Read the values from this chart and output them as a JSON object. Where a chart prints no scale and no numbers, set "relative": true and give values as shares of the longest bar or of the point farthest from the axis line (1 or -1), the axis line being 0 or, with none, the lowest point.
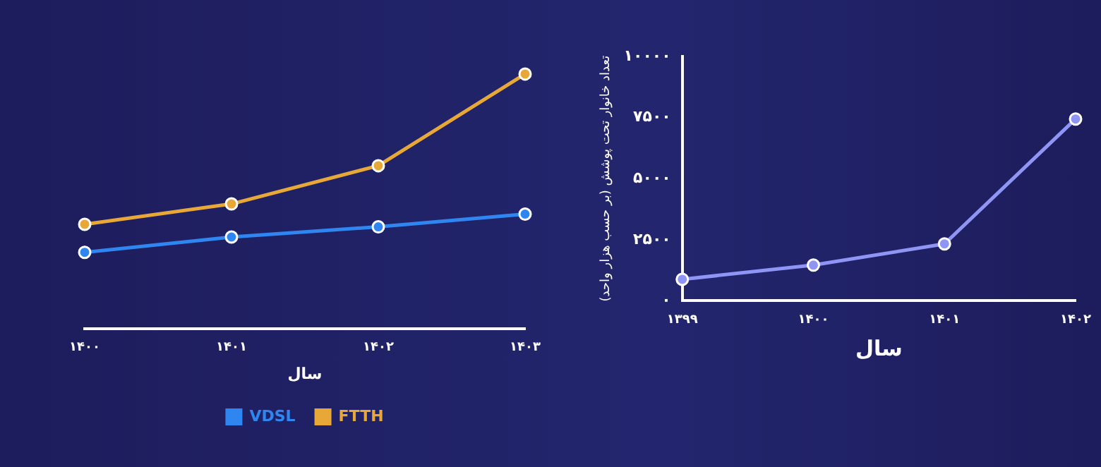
{
  "chart_data": [
    {
      "type": "line",
      "xlabel": "سال",
      "categories": [
        "۱۴۰۰",
        "۱۴۰۱",
        "۱۴۰۲",
        "۱۴۰۳"
      ],
      "relative": true,
      "marker": "circle",
      "grid": false,
      "legend": "bottom",
      "series": [
        {
          "name": "VDSL",
          "color": "#2f86f0",
          "values": [
            0.3,
            0.36,
            0.4,
            0.45
          ]
        },
        {
          "name": "FTTH",
          "color": "#e8a838",
          "values": [
            0.41,
            0.49,
            0.64,
            1
          ]
        }
      ]
    },
    {
      "type": "line",
      "xlabel": "سال",
      "ylabel": "تعداد خانوار تحت پوشش (بر حسب هزار واحد)",
      "categories": [
        "۱۳۹۹",
        "۱۴۰۰",
        "۱۴۰۱",
        "۱۴۰۲"
      ],
      "marker": "circle",
      "grid": false,
      "ylim": [
        0,
        10000
      ],
      "yticks": [
        {
          "value": 0,
          "label": "۰"
        },
        {
          "value": 2500,
          "label": "۲۵۰۰"
        },
        {
          "value": 5000,
          "label": "۵۰۰۰"
        },
        {
          "value": 7500,
          "label": "۷۵۰۰"
        },
        {
          "value": 10000,
          "label": "۱۰۰۰۰"
        }
      ],
      "series": [
        {
          "color": "#8f95f5",
          "values": [
            880,
            1460,
            2330,
            7440
          ]
        }
      ]
    }
  ]
}
